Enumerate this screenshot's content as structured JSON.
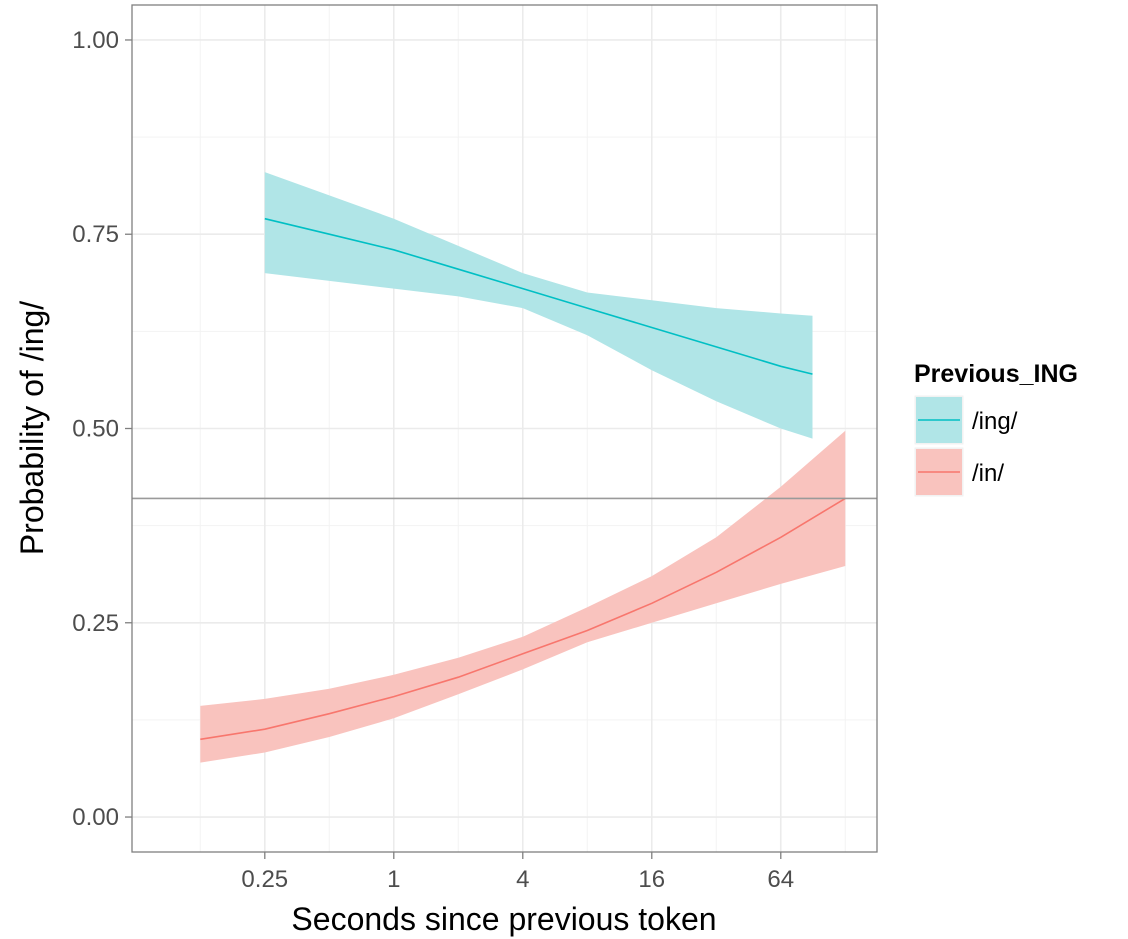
{
  "chart_data": {
    "type": "line",
    "xlabel": "Seconds since previous token",
    "ylabel": "Probability of /ing/",
    "x_scale": "log2",
    "xlim": [
      0.06,
      180
    ],
    "ylim": [
      -0.045,
      1.045
    ],
    "x_ticks": [
      0.25,
      1,
      4,
      16,
      64
    ],
    "x_tick_labels": [
      "0.25",
      "1",
      "4",
      "16",
      "64"
    ],
    "x_minor_ticks": [
      0.125,
      0.5,
      2,
      8,
      32,
      128
    ],
    "y_ticks": [
      0,
      0.25,
      0.5,
      0.75,
      1
    ],
    "y_tick_labels": [
      "0.00",
      "0.25",
      "0.50",
      "0.75",
      "1.00"
    ],
    "grid": true,
    "hline": 0.41,
    "legend": {
      "title": "Previous_ING",
      "position": "right",
      "entries": [
        "/ing/",
        "/in/"
      ]
    },
    "series": [
      {
        "name": "/ing/",
        "color": "#00bfc4",
        "fill": "#b0e5e7",
        "x": [
          0.25,
          0.5,
          1,
          2,
          4,
          8,
          16,
          32,
          64,
          90
        ],
        "y": [
          0.77,
          0.75,
          0.73,
          0.705,
          0.68,
          0.655,
          0.63,
          0.605,
          0.58,
          0.57
        ],
        "lower": [
          0.7,
          0.69,
          0.68,
          0.67,
          0.655,
          0.62,
          0.575,
          0.535,
          0.5,
          0.487
        ],
        "upper": [
          0.83,
          0.8,
          0.77,
          0.735,
          0.7,
          0.675,
          0.665,
          0.655,
          0.648,
          0.645
        ]
      },
      {
        "name": "/in/",
        "color": "#f8766d",
        "fill": "#f9c3be",
        "x": [
          0.125,
          0.25,
          0.5,
          1,
          2,
          4,
          8,
          16,
          32,
          64,
          128
        ],
        "y": [
          0.1,
          0.113,
          0.133,
          0.155,
          0.18,
          0.21,
          0.24,
          0.275,
          0.315,
          0.36,
          0.41
        ],
        "lower": [
          0.07,
          0.083,
          0.103,
          0.127,
          0.158,
          0.19,
          0.225,
          0.25,
          0.275,
          0.3,
          0.323
        ],
        "upper": [
          0.143,
          0.152,
          0.165,
          0.183,
          0.205,
          0.232,
          0.27,
          0.31,
          0.36,
          0.425,
          0.497
        ]
      }
    ]
  }
}
